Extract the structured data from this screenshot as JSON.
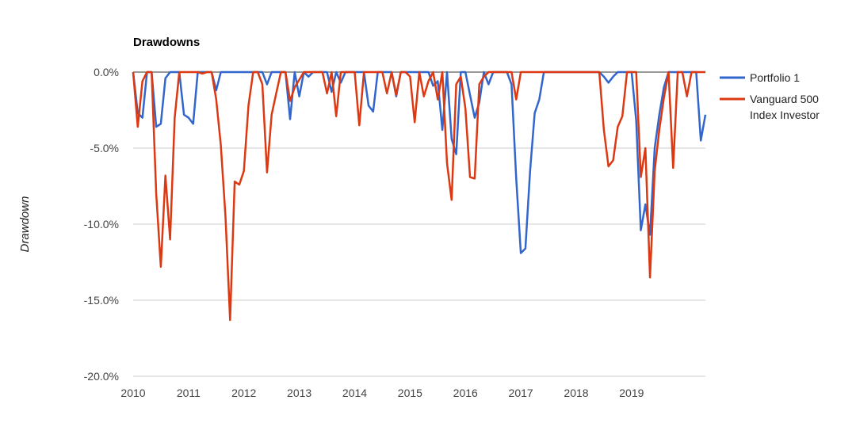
{
  "chart_data": {
    "type": "line",
    "title": "Drawdowns",
    "xlabel": "",
    "ylabel": "Drawdown",
    "ylim": [
      -20,
      0
    ],
    "xlim": [
      2010.0,
      2019.9167
    ],
    "y_ticks": [
      0,
      -5,
      -10,
      -15,
      -20
    ],
    "y_tick_labels": [
      "0.0%",
      "-5.0%",
      "-10.0%",
      "-15.0%",
      "-20.0%"
    ],
    "x_ticks": [
      2010,
      2011,
      2012,
      2013,
      2014,
      2015,
      2016,
      2017,
      2018,
      2019
    ],
    "x_tick_labels": [
      "2010",
      "2011",
      "2012",
      "2013",
      "2014",
      "2015",
      "2016",
      "2017",
      "2018",
      "2019"
    ],
    "grid": true,
    "legend_position": "right",
    "series": [
      {
        "name": "Portfolio 1",
        "color": "#3366cc",
        "values": [
          [
            2010.0,
            0
          ],
          [
            2010.083,
            -2.7
          ],
          [
            2010.167,
            -3.0
          ],
          [
            2010.25,
            0
          ],
          [
            2010.333,
            0
          ],
          [
            2010.417,
            -3.6
          ],
          [
            2010.5,
            -3.4
          ],
          [
            2010.583,
            -0.4
          ],
          [
            2010.667,
            0
          ],
          [
            2010.75,
            0
          ],
          [
            2010.833,
            0
          ],
          [
            2010.917,
            -2.8
          ],
          [
            2011.0,
            -3.0
          ],
          [
            2011.083,
            -3.4
          ],
          [
            2011.167,
            0
          ],
          [
            2011.25,
            0
          ],
          [
            2011.333,
            0
          ],
          [
            2011.417,
            0
          ],
          [
            2011.5,
            -1.2
          ],
          [
            2011.583,
            0
          ],
          [
            2011.667,
            0
          ],
          [
            2011.75,
            0
          ],
          [
            2011.833,
            0
          ],
          [
            2011.917,
            0
          ],
          [
            2012.0,
            0
          ],
          [
            2012.083,
            0
          ],
          [
            2012.167,
            0
          ],
          [
            2012.25,
            0
          ],
          [
            2012.333,
            0
          ],
          [
            2012.417,
            -0.8
          ],
          [
            2012.5,
            0
          ],
          [
            2012.583,
            0
          ],
          [
            2012.667,
            0
          ],
          [
            2012.75,
            0
          ],
          [
            2012.833,
            -3.1
          ],
          [
            2012.917,
            0
          ],
          [
            2013.0,
            -1.6
          ],
          [
            2013.083,
            0
          ],
          [
            2013.167,
            -0.3
          ],
          [
            2013.25,
            0
          ],
          [
            2013.333,
            0
          ],
          [
            2013.417,
            0
          ],
          [
            2013.5,
            0
          ],
          [
            2013.583,
            -1.3
          ],
          [
            2013.667,
            0
          ],
          [
            2013.75,
            -0.7
          ],
          [
            2013.833,
            0
          ],
          [
            2013.917,
            0
          ],
          [
            2014.0,
            0
          ],
          [
            2014.083,
            0
          ],
          [
            2014.167,
            0
          ],
          [
            2014.25,
            -2.2
          ],
          [
            2014.333,
            -2.6
          ],
          [
            2014.417,
            0
          ],
          [
            2014.5,
            0
          ],
          [
            2014.583,
            0
          ],
          [
            2014.667,
            0
          ],
          [
            2014.75,
            -1.6
          ],
          [
            2014.833,
            0
          ],
          [
            2014.917,
            0
          ],
          [
            2015.0,
            0
          ],
          [
            2015.083,
            0
          ],
          [
            2015.167,
            0
          ],
          [
            2015.25,
            0
          ],
          [
            2015.333,
            0
          ],
          [
            2015.417,
            -0.9
          ],
          [
            2015.5,
            -0.6
          ],
          [
            2015.583,
            -3.8
          ],
          [
            2015.667,
            0
          ],
          [
            2015.75,
            -4.4
          ],
          [
            2015.833,
            -5.4
          ],
          [
            2015.917,
            0
          ],
          [
            2016.0,
            0
          ],
          [
            2016.083,
            -1.5
          ],
          [
            2016.167,
            -3.0
          ],
          [
            2016.25,
            -2.0
          ],
          [
            2016.333,
            0
          ],
          [
            2016.417,
            -0.8
          ],
          [
            2016.5,
            0
          ],
          [
            2016.583,
            0
          ],
          [
            2016.667,
            0
          ],
          [
            2016.75,
            0
          ],
          [
            2016.833,
            -0.8
          ],
          [
            2016.917,
            -7.0
          ],
          [
            2017.0,
            -11.9
          ],
          [
            2017.083,
            -11.6
          ],
          [
            2017.167,
            -6.5
          ],
          [
            2017.25,
            -2.7
          ],
          [
            2017.333,
            -1.8
          ],
          [
            2017.417,
            0
          ],
          [
            2017.5,
            0
          ],
          [
            2017.583,
            0
          ],
          [
            2017.667,
            0
          ],
          [
            2017.75,
            0
          ],
          [
            2017.833,
            0
          ],
          [
            2017.917,
            0
          ],
          [
            2018.0,
            0
          ],
          [
            2018.083,
            0
          ],
          [
            2018.167,
            0
          ],
          [
            2018.25,
            0
          ],
          [
            2018.333,
            0
          ],
          [
            2018.417,
            0
          ],
          [
            2018.5,
            -0.3
          ],
          [
            2018.583,
            -0.7
          ],
          [
            2018.667,
            -0.3
          ],
          [
            2018.75,
            0
          ],
          [
            2018.833,
            0
          ],
          [
            2018.917,
            0
          ],
          [
            2019.0,
            0
          ],
          [
            2019.083,
            -3.2
          ],
          [
            2019.167,
            -10.4
          ],
          [
            2019.25,
            -8.7
          ],
          [
            2019.333,
            -10.7
          ],
          [
            2019.417,
            -5.0
          ],
          [
            2019.5,
            -2.8
          ],
          [
            2019.583,
            -1.0
          ],
          [
            2019.667,
            0
          ],
          [
            2019.75,
            0
          ],
          [
            2019.833,
            0
          ],
          [
            2019.917,
            0
          ],
          [
            2020.0,
            0
          ],
          [
            2020.083,
            0
          ],
          [
            2020.167,
            0
          ],
          [
            2020.25,
            -4.5
          ],
          [
            2020.333,
            -2.8
          ]
        ]
      },
      {
        "name": "Vanguard 500 Index Investor",
        "color": "#dc3912",
        "values": [
          [
            2010.0,
            0
          ],
          [
            2010.083,
            -3.6
          ],
          [
            2010.167,
            -0.6
          ],
          [
            2010.25,
            0
          ],
          [
            2010.333,
            0
          ],
          [
            2010.417,
            -8.0
          ],
          [
            2010.5,
            -12.8
          ],
          [
            2010.583,
            -6.8
          ],
          [
            2010.667,
            -11.0
          ],
          [
            2010.75,
            -3.0
          ],
          [
            2010.833,
            0
          ],
          [
            2010.917,
            0
          ],
          [
            2011.0,
            0
          ],
          [
            2011.083,
            0
          ],
          [
            2011.167,
            0
          ],
          [
            2011.25,
            -0.1
          ],
          [
            2011.333,
            0
          ],
          [
            2011.417,
            0
          ],
          [
            2011.5,
            -1.8
          ],
          [
            2011.583,
            -4.8
          ],
          [
            2011.667,
            -9.5
          ],
          [
            2011.75,
            -16.3
          ],
          [
            2011.833,
            -7.2
          ],
          [
            2011.917,
            -7.4
          ],
          [
            2012.0,
            -6.5
          ],
          [
            2012.083,
            -2.2
          ],
          [
            2012.167,
            0
          ],
          [
            2012.25,
            0
          ],
          [
            2012.333,
            -0.8
          ],
          [
            2012.417,
            -6.6
          ],
          [
            2012.5,
            -2.8
          ],
          [
            2012.583,
            -1.4
          ],
          [
            2012.667,
            0
          ],
          [
            2012.75,
            0
          ],
          [
            2012.833,
            -1.9
          ],
          [
            2012.917,
            -1.0
          ],
          [
            2013.0,
            -0.5
          ],
          [
            2013.083,
            0
          ],
          [
            2013.167,
            0
          ],
          [
            2013.25,
            0
          ],
          [
            2013.333,
            0
          ],
          [
            2013.417,
            0
          ],
          [
            2013.5,
            -1.4
          ],
          [
            2013.583,
            0
          ],
          [
            2013.667,
            -2.9
          ],
          [
            2013.75,
            0
          ],
          [
            2013.833,
            0
          ],
          [
            2013.917,
            0
          ],
          [
            2014.0,
            0
          ],
          [
            2014.083,
            -3.5
          ],
          [
            2014.167,
            0
          ],
          [
            2014.25,
            0
          ],
          [
            2014.333,
            0
          ],
          [
            2014.417,
            0
          ],
          [
            2014.5,
            0
          ],
          [
            2014.583,
            -1.4
          ],
          [
            2014.667,
            0
          ],
          [
            2014.75,
            -1.5
          ],
          [
            2014.833,
            0
          ],
          [
            2014.917,
            0
          ],
          [
            2015.0,
            -0.3
          ],
          [
            2015.083,
            -3.3
          ],
          [
            2015.167,
            0
          ],
          [
            2015.25,
            -1.6
          ],
          [
            2015.333,
            -0.6
          ],
          [
            2015.417,
            0
          ],
          [
            2015.5,
            -1.8
          ],
          [
            2015.583,
            0
          ],
          [
            2015.667,
            -6.0
          ],
          [
            2015.75,
            -8.4
          ],
          [
            2015.833,
            -0.8
          ],
          [
            2015.917,
            -0.3
          ],
          [
            2016.0,
            -2.4
          ],
          [
            2016.083,
            -6.9
          ],
          [
            2016.167,
            -7.0
          ],
          [
            2016.25,
            -0.8
          ],
          [
            2016.333,
            -0.3
          ],
          [
            2016.417,
            0
          ],
          [
            2016.5,
            0
          ],
          [
            2016.583,
            0
          ],
          [
            2016.667,
            0
          ],
          [
            2016.75,
            0
          ],
          [
            2016.833,
            0
          ],
          [
            2016.917,
            -1.8
          ],
          [
            2017.0,
            0
          ],
          [
            2017.083,
            0
          ],
          [
            2017.167,
            0
          ],
          [
            2017.25,
            0
          ],
          [
            2017.333,
            0
          ],
          [
            2017.417,
            0
          ],
          [
            2017.5,
            0
          ],
          [
            2017.583,
            0
          ],
          [
            2017.667,
            0
          ],
          [
            2017.75,
            0
          ],
          [
            2017.833,
            0
          ],
          [
            2017.917,
            0
          ],
          [
            2018.0,
            0
          ],
          [
            2018.083,
            0
          ],
          [
            2018.167,
            0
          ],
          [
            2018.25,
            0
          ],
          [
            2018.333,
            0
          ],
          [
            2018.417,
            0
          ],
          [
            2018.5,
            -3.8
          ],
          [
            2018.583,
            -6.2
          ],
          [
            2018.667,
            -5.8
          ],
          [
            2018.75,
            -3.6
          ],
          [
            2018.833,
            -2.9
          ],
          [
            2018.917,
            0
          ],
          [
            2019.0,
            0
          ],
          [
            2019.083,
            0
          ],
          [
            2019.167,
            -6.9
          ],
          [
            2019.25,
            -5.0
          ],
          [
            2019.333,
            -13.5
          ],
          [
            2019.417,
            -6.5
          ],
          [
            2019.5,
            -3.8
          ],
          [
            2019.583,
            -1.7
          ],
          [
            2019.667,
            0
          ],
          [
            2019.75,
            -6.3
          ],
          [
            2019.833,
            0
          ],
          [
            2019.917,
            0
          ],
          [
            2020.0,
            -1.6
          ],
          [
            2020.083,
            0
          ],
          [
            2020.167,
            0
          ],
          [
            2020.25,
            0
          ],
          [
            2020.333,
            0
          ]
        ]
      }
    ]
  }
}
